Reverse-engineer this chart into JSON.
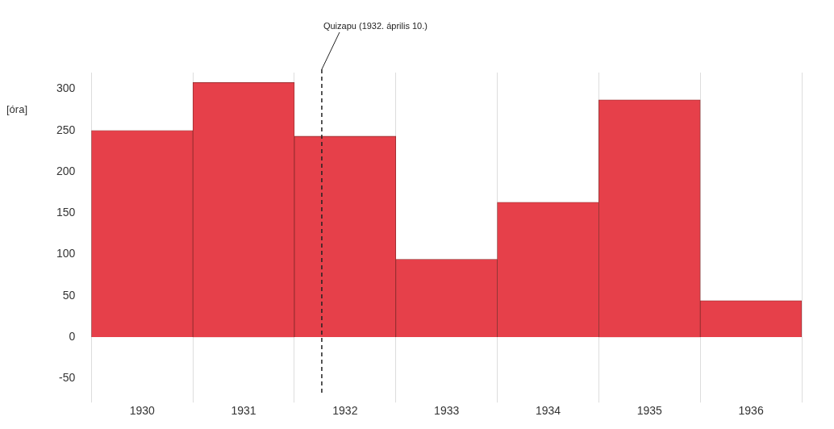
{
  "chart_data": {
    "type": "bar",
    "ylabel": "[óra]",
    "x": [
      1930,
      1931,
      1932,
      1933,
      1934,
      1935,
      1936
    ],
    "values": [
      250,
      308,
      243,
      94,
      163,
      287,
      44
    ],
    "color": "#e6404a",
    "xlim": [
      1929.5,
      1936.5
    ],
    "xticks": [
      1930,
      1931,
      1932,
      1933,
      1934,
      1935,
      1936
    ],
    "ylim": [
      -50,
      320
    ],
    "yticks": [
      -50,
      0,
      50,
      100,
      150,
      200,
      250,
      300
    ],
    "grid": "x",
    "ref_lines": [
      {
        "axis": "x",
        "value": 1931.77,
        "label": "Quizapu (1932. április 10.)",
        "line_style": "dashed",
        "color": "#222222"
      }
    ]
  }
}
